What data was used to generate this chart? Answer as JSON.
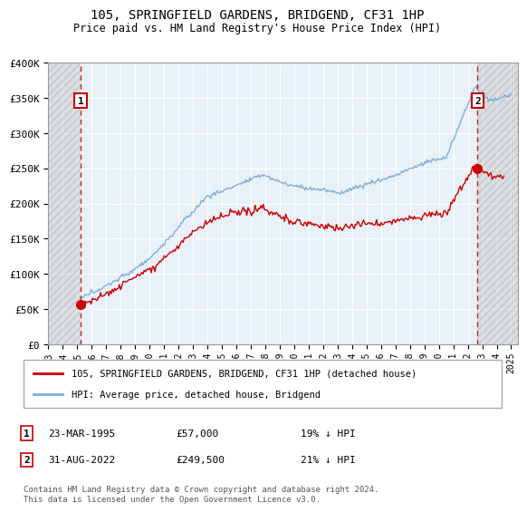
{
  "title": "105, SPRINGFIELD GARDENS, BRIDGEND, CF31 1HP",
  "subtitle": "Price paid vs. HM Land Registry's House Price Index (HPI)",
  "ylim": [
    0,
    400000
  ],
  "xlim_start": 1993.0,
  "xlim_end": 2025.5,
  "yticks": [
    0,
    50000,
    100000,
    150000,
    200000,
    250000,
    300000,
    350000,
    400000
  ],
  "ytick_labels": [
    "£0",
    "£50K",
    "£100K",
    "£150K",
    "£200K",
    "£250K",
    "£300K",
    "£350K",
    "£400K"
  ],
  "hatch_end": 1995.2,
  "hatch_start": 2022.65,
  "transaction1_x": 1995.22,
  "transaction1_y": 57000,
  "transaction1_label": "1",
  "transaction2_x": 2022.67,
  "transaction2_y": 249500,
  "transaction2_label": "2",
  "legend_line1": "105, SPRINGFIELD GARDENS, BRIDGEND, CF31 1HP (detached house)",
  "legend_line2": "HPI: Average price, detached house, Bridgend",
  "legend1_date": "23-MAR-1995",
  "legend1_price": "£57,000",
  "legend1_hpi": "19% ↓ HPI",
  "legend2_date": "31-AUG-2022",
  "legend2_price": "£249,500",
  "legend2_hpi": "21% ↓ HPI",
  "footer": "Contains HM Land Registry data © Crown copyright and database right 2024.\nThis data is licensed under the Open Government Licence v3.0.",
  "red_color": "#cc0000",
  "blue_color": "#7fb0d8",
  "plot_bg": "#e8f0f8",
  "grid_color": "#ffffff",
  "xticks": [
    1993,
    1994,
    1995,
    1996,
    1997,
    1998,
    1999,
    2000,
    2001,
    2002,
    2003,
    2004,
    2005,
    2006,
    2007,
    2008,
    2009,
    2010,
    2011,
    2012,
    2013,
    2014,
    2015,
    2016,
    2017,
    2018,
    2019,
    2020,
    2021,
    2022,
    2023,
    2024,
    2025
  ]
}
